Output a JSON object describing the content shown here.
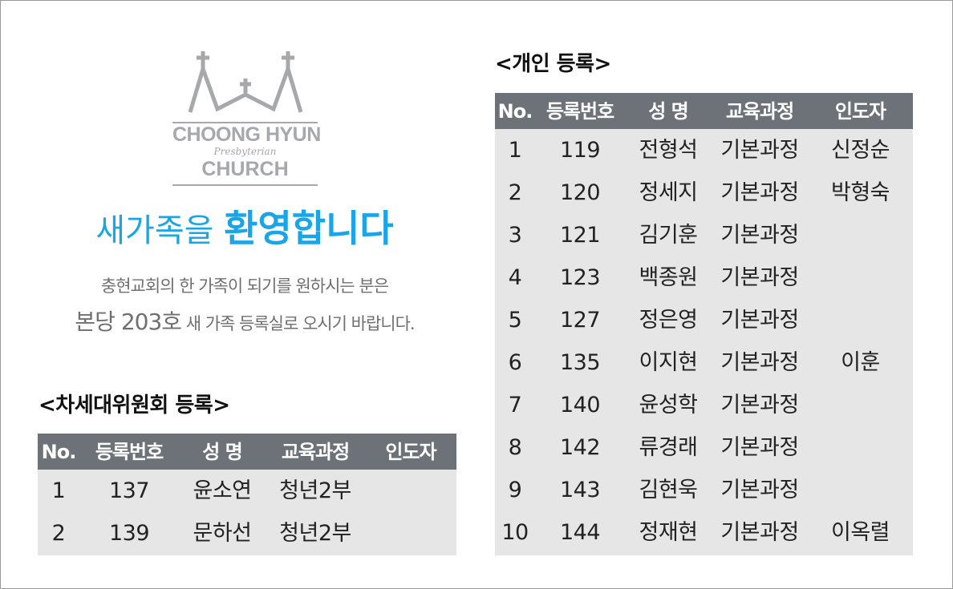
{
  "logo": {
    "line1": "CHOONG HYUN",
    "line2": "Presbyterian",
    "line3": "CHURCH",
    "color": "#a6a8ab"
  },
  "welcome": {
    "part1": "새가족을 ",
    "part2": "환영합니다",
    "color": "#1aa5e6"
  },
  "description": {
    "line1": "충현교회의 한 가족이 되기를 원하시는 분은",
    "line2_large": "본당 203호",
    "line2_rest": " 새 가족 등록실로 오시기 바랍니다."
  },
  "next_gen": {
    "title": "<차세대위원회 등록>",
    "columns": [
      "No.",
      "등록번호",
      "성 명",
      "교육과정",
      "인도자"
    ],
    "rows": [
      [
        "1",
        "137",
        "윤소연",
        "청년2부",
        ""
      ],
      [
        "2",
        "139",
        "문하선",
        "청년2부",
        ""
      ]
    ]
  },
  "individual": {
    "title": "<개인 등록>",
    "columns": [
      "No.",
      "등록번호",
      "성 명",
      "교육과정",
      "인도자"
    ],
    "rows": [
      [
        "1",
        "119",
        "전형석",
        "기본과정",
        "신정순"
      ],
      [
        "2",
        "120",
        "정세지",
        "기본과정",
        "박형숙"
      ],
      [
        "3",
        "121",
        "김기훈",
        "기본과정",
        ""
      ],
      [
        "4",
        "123",
        "백종원",
        "기본과정",
        ""
      ],
      [
        "5",
        "127",
        "정은영",
        "기본과정",
        ""
      ],
      [
        "6",
        "135",
        "이지현",
        "기본과정",
        "이훈"
      ],
      [
        "7",
        "140",
        "윤성학",
        "기본과정",
        ""
      ],
      [
        "8",
        "142",
        "류경래",
        "기본과정",
        ""
      ],
      [
        "9",
        "143",
        "김현욱",
        "기본과정",
        ""
      ],
      [
        "10",
        "144",
        "정재현",
        "기본과정",
        "이옥렬"
      ]
    ]
  },
  "colors": {
    "header_bg": "#6d7278",
    "body_bg": "#e6e6e6"
  }
}
